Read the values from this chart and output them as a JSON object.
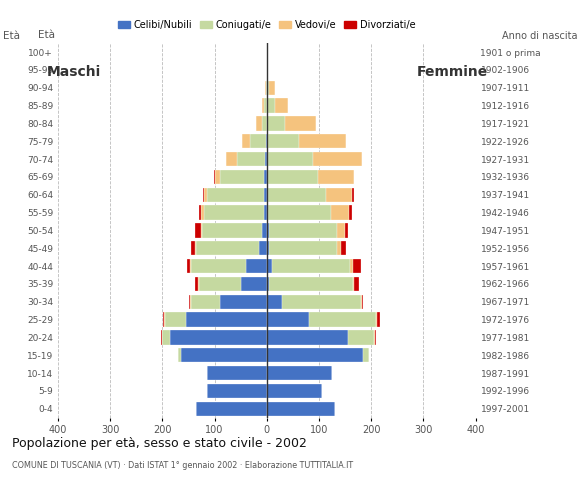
{
  "age_groups": [
    "0-4",
    "5-9",
    "10-14",
    "15-19",
    "20-24",
    "25-29",
    "30-34",
    "35-39",
    "40-44",
    "45-49",
    "50-54",
    "55-59",
    "60-64",
    "65-69",
    "70-74",
    "75-79",
    "80-84",
    "85-89",
    "90-94",
    "95-99",
    "100+"
  ],
  "birth_years": [
    "1997-2001",
    "1992-1996",
    "1987-1991",
    "1982-1986",
    "1977-1981",
    "1972-1976",
    "1967-1971",
    "1962-1966",
    "1957-1961",
    "1952-1956",
    "1947-1951",
    "1942-1946",
    "1937-1941",
    "1932-1936",
    "1927-1931",
    "1922-1926",
    "1917-1921",
    "1912-1916",
    "1907-1911",
    "1902-1906",
    "1901 o prima"
  ],
  "colors": {
    "celibe": "#4472c4",
    "coniugato": "#c5d9a0",
    "vedovo": "#f5c37e",
    "divorziato": "#cc0000"
  },
  "males": {
    "celibe": [
      135,
      115,
      115,
      165,
      185,
      155,
      90,
      50,
      40,
      15,
      10,
      6,
      5,
      5,
      3,
      2,
      0,
      0,
      0,
      0,
      0
    ],
    "coniugato": [
      0,
      0,
      0,
      5,
      15,
      40,
      55,
      80,
      105,
      120,
      115,
      115,
      110,
      85,
      55,
      30,
      10,
      5,
      2,
      0,
      0
    ],
    "vedovo": [
      0,
      0,
      0,
      0,
      0,
      2,
      2,
      2,
      2,
      2,
      2,
      5,
      5,
      10,
      20,
      15,
      10,
      5,
      2,
      0,
      0
    ],
    "divorziato": [
      0,
      0,
      0,
      0,
      2,
      2,
      2,
      5,
      5,
      8,
      10,
      3,
      3,
      2,
      0,
      0,
      0,
      0,
      0,
      0,
      0
    ]
  },
  "females": {
    "celibe": [
      130,
      105,
      125,
      185,
      155,
      80,
      30,
      5,
      10,
      5,
      5,
      3,
      3,
      3,
      3,
      2,
      0,
      0,
      0,
      0,
      0
    ],
    "coniugato": [
      0,
      0,
      0,
      10,
      50,
      130,
      150,
      160,
      150,
      130,
      130,
      120,
      110,
      95,
      85,
      60,
      35,
      15,
      5,
      0,
      0
    ],
    "vedovo": [
      0,
      0,
      0,
      0,
      2,
      2,
      2,
      3,
      5,
      8,
      15,
      35,
      50,
      70,
      95,
      90,
      60,
      25,
      10,
      0,
      0
    ],
    "divorziato": [
      0,
      0,
      0,
      0,
      2,
      5,
      3,
      8,
      15,
      8,
      5,
      5,
      5,
      0,
      0,
      0,
      0,
      0,
      0,
      0,
      0
    ]
  },
  "title": "Popolazione per età, sesso e stato civile - 2002",
  "subtitle": "COMUNE DI TUSCANIA (VT) · Dati ISTAT 1° gennaio 2002 · Elaborazione TUTTITALIA.IT",
  "xlabel_left": "Maschi",
  "xlabel_right": "Femmine",
  "ylabel_left": "Età",
  "ylabel_right": "Anno di nascita",
  "xlim": 400,
  "legend_labels": [
    "Celibi/Nubili",
    "Coniugati/e",
    "Vedovi/e",
    "Divorziati/e"
  ]
}
